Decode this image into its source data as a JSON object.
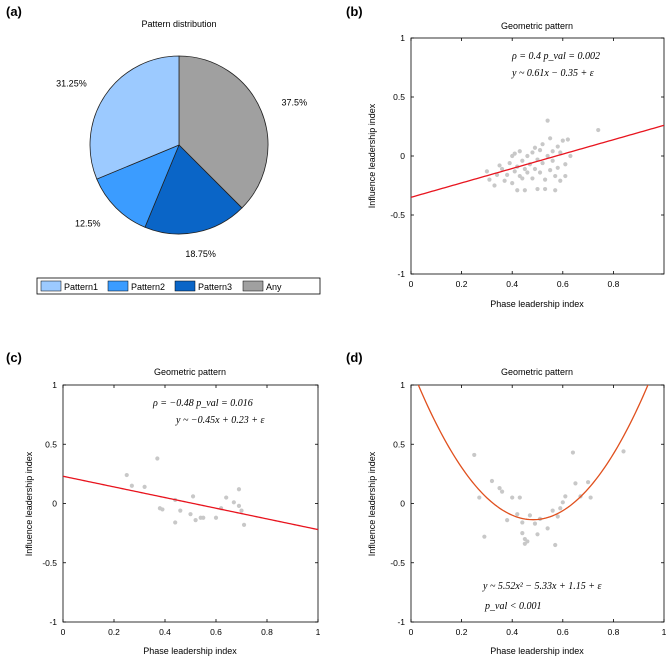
{
  "colors": {
    "pattern1": "#9ccaff",
    "pattern2": "#3b9cff",
    "pattern3": "#0a65c7",
    "any": "#a0a0a0",
    "scatter": "#c8c8c8",
    "fit_red": "#e8141e",
    "fit_orange": "#e0501e"
  },
  "panels": {
    "a": {
      "label": "(a)"
    },
    "b": {
      "label": "(b)"
    },
    "c": {
      "label": "(c)"
    },
    "d": {
      "label": "(d)"
    }
  },
  "chart_data": [
    {
      "panel": "a",
      "type": "pie",
      "title": "Pattern distribution",
      "slices": [
        {
          "name": "Any",
          "value": 37.5,
          "label": "37.5%",
          "color": "#a0a0a0"
        },
        {
          "name": "Pattern3",
          "value": 18.75,
          "label": "18.75%",
          "color": "#0a65c7"
        },
        {
          "name": "Pattern2",
          "value": 12.5,
          "label": "12.5%",
          "color": "#3b9cff"
        },
        {
          "name": "Pattern1",
          "value": 31.25,
          "label": "31.25%",
          "color": "#9ccaff"
        }
      ],
      "legend": {
        "placement": "bottom",
        "entries": [
          "Pattern1",
          "Pattern2",
          "Pattern3",
          "Any"
        ]
      }
    },
    {
      "panel": "b",
      "type": "scatter",
      "title": "Geometric pattern",
      "xlabel": "Phase leadership index",
      "ylabel": "Influence leadership index",
      "xlim": [
        0,
        1
      ],
      "ylim": [
        -1,
        1
      ],
      "xticks": [
        "0",
        "0.2",
        "0.4",
        "0.6",
        "0.8"
      ],
      "xtick_values": [
        0,
        0.2,
        0.4,
        0.6,
        0.8
      ],
      "yticks": [
        "-1",
        "-0.5",
        "0",
        "0.5",
        "1"
      ],
      "ytick_values": [
        -1,
        -0.5,
        0,
        0.5,
        1
      ],
      "annotation_lines": [
        "ρ = 0.4 p_val = 0.002",
        "y ~ 0.61x − 0.35 + ε"
      ],
      "fit": {
        "kind": "linear",
        "coef": [
          0.61,
          -0.35
        ],
        "x_range": [
          0,
          1
        ]
      },
      "points": [
        [
          0.3,
          -0.13
        ],
        [
          0.31,
          -0.2
        ],
        [
          0.33,
          -0.25
        ],
        [
          0.34,
          -0.16
        ],
        [
          0.35,
          -0.08
        ],
        [
          0.36,
          -0.11
        ],
        [
          0.37,
          -0.21
        ],
        [
          0.38,
          -0.16
        ],
        [
          0.39,
          -0.06
        ],
        [
          0.4,
          -0.23
        ],
        [
          0.4,
          0.0
        ],
        [
          0.41,
          0.02
        ],
        [
          0.41,
          -0.13
        ],
        [
          0.42,
          -0.29
        ],
        [
          0.42,
          -0.09
        ],
        [
          0.43,
          0.04
        ],
        [
          0.43,
          -0.17
        ],
        [
          0.44,
          -0.04
        ],
        [
          0.44,
          -0.19
        ],
        [
          0.45,
          -0.11
        ],
        [
          0.45,
          -0.29
        ],
        [
          0.46,
          0.0
        ],
        [
          0.46,
          -0.14
        ],
        [
          0.47,
          -0.07
        ],
        [
          0.48,
          0.03
        ],
        [
          0.48,
          -0.19
        ],
        [
          0.49,
          0.07
        ],
        [
          0.49,
          -0.11
        ],
        [
          0.5,
          -0.03
        ],
        [
          0.5,
          -0.28
        ],
        [
          0.51,
          0.05
        ],
        [
          0.51,
          -0.14
        ],
        [
          0.52,
          -0.06
        ],
        [
          0.52,
          0.1
        ],
        [
          0.53,
          -0.2
        ],
        [
          0.53,
          -0.28
        ],
        [
          0.54,
          0.3
        ],
        [
          0.54,
          0.0
        ],
        [
          0.55,
          -0.12
        ],
        [
          0.55,
          0.15
        ],
        [
          0.56,
          -0.04
        ],
        [
          0.56,
          0.04
        ],
        [
          0.57,
          -0.17
        ],
        [
          0.57,
          -0.29
        ],
        [
          0.58,
          0.08
        ],
        [
          0.58,
          -0.1
        ],
        [
          0.59,
          0.03
        ],
        [
          0.59,
          -0.21
        ],
        [
          0.6,
          0.13
        ],
        [
          0.61,
          -0.07
        ],
        [
          0.61,
          -0.17
        ],
        [
          0.62,
          0.14
        ],
        [
          0.63,
          0.0
        ],
        [
          0.74,
          0.22
        ]
      ]
    },
    {
      "panel": "c",
      "type": "scatter",
      "title": "Geometric pattern",
      "xlabel": "Phase leadership index",
      "ylabel": "Influence leadership index",
      "xlim": [
        0,
        1
      ],
      "ylim": [
        -1,
        1
      ],
      "xticks": [
        "0",
        "0.2",
        "0.4",
        "0.6",
        "0.8",
        "1"
      ],
      "xtick_values": [
        0,
        0.2,
        0.4,
        0.6,
        0.8,
        1
      ],
      "yticks": [
        "-1",
        "-0.5",
        "0",
        "0.5",
        "1"
      ],
      "ytick_values": [
        -1,
        -0.5,
        0,
        0.5,
        1
      ],
      "annotation_lines": [
        "ρ = −0.48 p_val = 0.016",
        "y ~ −0.45x + 0.23 + ε"
      ],
      "fit": {
        "kind": "linear",
        "coef": [
          -0.45,
          0.23
        ],
        "x_range": [
          0,
          1
        ]
      },
      "points": [
        [
          0.25,
          0.24
        ],
        [
          0.27,
          0.15
        ],
        [
          0.32,
          0.14
        ],
        [
          0.37,
          0.38
        ],
        [
          0.38,
          -0.04
        ],
        [
          0.39,
          -0.05
        ],
        [
          0.44,
          0.03
        ],
        [
          0.44,
          -0.16
        ],
        [
          0.46,
          -0.06
        ],
        [
          0.5,
          -0.09
        ],
        [
          0.51,
          0.06
        ],
        [
          0.52,
          -0.14
        ],
        [
          0.54,
          -0.12
        ],
        [
          0.55,
          -0.12
        ],
        [
          0.6,
          -0.12
        ],
        [
          0.62,
          -0.04
        ],
        [
          0.64,
          0.05
        ],
        [
          0.67,
          0.01
        ],
        [
          0.69,
          -0.02
        ],
        [
          0.69,
          0.12
        ],
        [
          0.7,
          -0.06
        ],
        [
          0.71,
          -0.18
        ]
      ]
    },
    {
      "panel": "d",
      "type": "scatter",
      "title": "Geometric pattern",
      "xlabel": "Phase leadership index",
      "ylabel": "Influence leadership index",
      "xlim": [
        0,
        1
      ],
      "ylim": [
        -1,
        1
      ],
      "xticks": [
        "0",
        "0.2",
        "0.4",
        "0.6",
        "0.8",
        "1"
      ],
      "xtick_values": [
        0,
        0.2,
        0.4,
        0.6,
        0.8,
        1
      ],
      "yticks": [
        "-1",
        "-0.5",
        "0",
        "0.5",
        "1"
      ],
      "ytick_values": [
        -1,
        -0.5,
        0,
        0.5,
        1
      ],
      "annotation_lines": [
        "y ~ 5.52x² − 5.33x + 1.15 + ε",
        "p_val < 0.001"
      ],
      "fit": {
        "kind": "quadratic",
        "coef": [
          5.52,
          -5.33,
          1.15
        ],
        "x_range": [
          0,
          1
        ]
      },
      "points": [
        [
          0.25,
          0.41
        ],
        [
          0.27,
          0.05
        ],
        [
          0.29,
          -0.28
        ],
        [
          0.32,
          0.19
        ],
        [
          0.35,
          0.13
        ],
        [
          0.36,
          0.1
        ],
        [
          0.38,
          -0.14
        ],
        [
          0.4,
          0.05
        ],
        [
          0.42,
          -0.09
        ],
        [
          0.43,
          0.05
        ],
        [
          0.44,
          -0.16
        ],
        [
          0.44,
          -0.25
        ],
        [
          0.45,
          -0.3
        ],
        [
          0.45,
          -0.34
        ],
        [
          0.46,
          -0.32
        ],
        [
          0.47,
          -0.1
        ],
        [
          0.49,
          -0.17
        ],
        [
          0.5,
          -0.26
        ],
        [
          0.51,
          -0.13
        ],
        [
          0.54,
          -0.21
        ],
        [
          0.56,
          -0.06
        ],
        [
          0.57,
          -0.35
        ],
        [
          0.58,
          -0.11
        ],
        [
          0.59,
          -0.04
        ],
        [
          0.6,
          0.01
        ],
        [
          0.61,
          0.06
        ],
        [
          0.64,
          0.43
        ],
        [
          0.65,
          0.17
        ],
        [
          0.67,
          0.06
        ],
        [
          0.7,
          0.18
        ],
        [
          0.71,
          0.05
        ],
        [
          0.84,
          0.44
        ]
      ]
    }
  ]
}
